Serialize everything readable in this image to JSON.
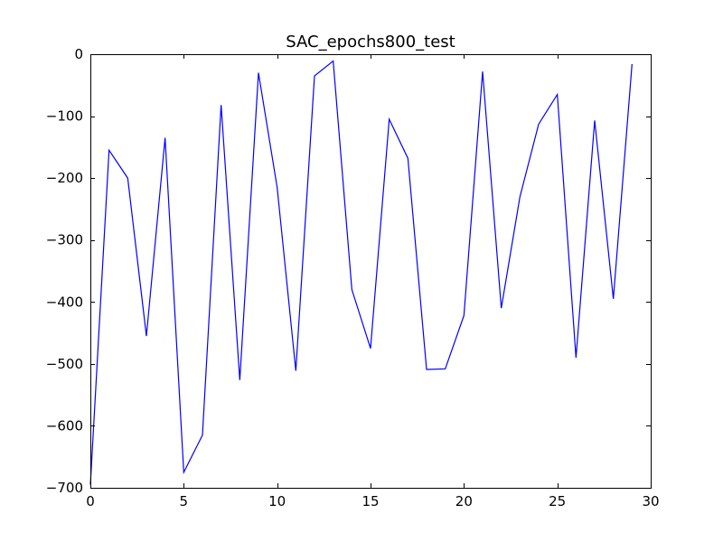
{
  "chart_data": {
    "type": "line",
    "title": "SAC_epochs800_test",
    "xlabel": "",
    "ylabel": "",
    "xlim": [
      0,
      30
    ],
    "ylim": [
      -700,
      0
    ],
    "xticks": [
      0,
      5,
      10,
      15,
      20,
      25,
      30
    ],
    "yticks": [
      0,
      -100,
      -200,
      -300,
      -400,
      -500,
      -600,
      -700
    ],
    "xtick_labels": [
      "0",
      "5",
      "10",
      "15",
      "20",
      "25",
      "30"
    ],
    "ytick_labels": [
      "0",
      "−100",
      "−200",
      "−300",
      "−400",
      "−500",
      "−600",
      "−700"
    ],
    "grid": false,
    "line_color": "#0000ff",
    "series": [
      {
        "x": [
          0,
          1,
          2,
          3,
          4,
          5,
          6,
          7,
          8,
          9,
          10,
          11,
          12,
          13,
          14,
          15,
          16,
          17,
          18,
          19,
          20,
          21,
          22,
          23,
          24,
          25,
          26,
          27,
          28,
          29
        ],
        "values": [
          -695,
          -155,
          -200,
          -455,
          -135,
          -675,
          -615,
          -82,
          -526,
          -30,
          -215,
          -511,
          -35,
          -11,
          -380,
          -475,
          -105,
          -168,
          -509,
          -508,
          -422,
          -28,
          -410,
          -230,
          -113,
          -65,
          -490,
          -107,
          -395,
          -16
        ]
      }
    ]
  }
}
